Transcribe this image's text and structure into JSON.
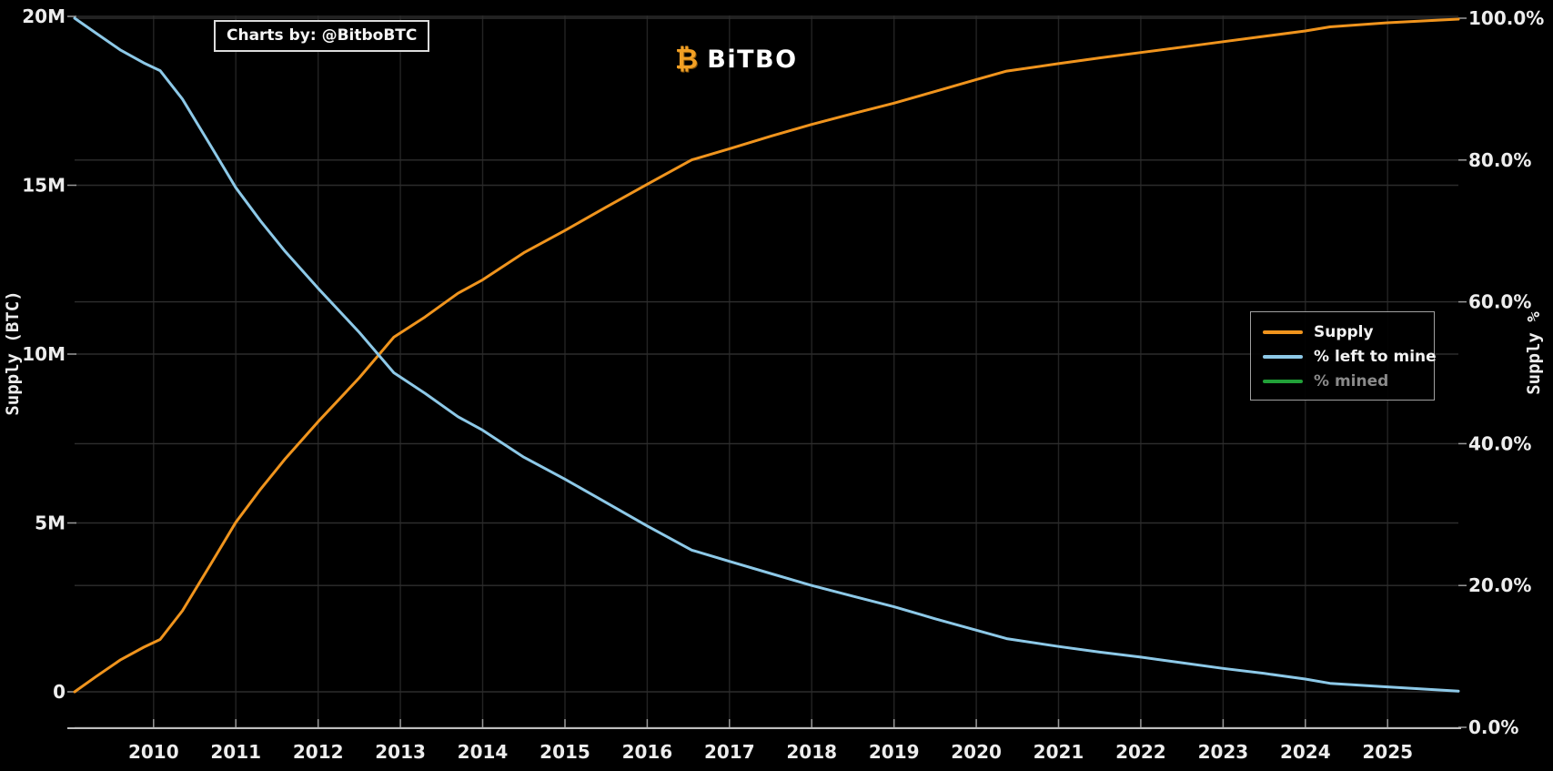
{
  "brand": {
    "logo_icon": "₿",
    "logo_text": "BiTBO",
    "accent_color": "#f7931a"
  },
  "watermark": {
    "text": "Charts by: @BitboBTC"
  },
  "chart_data": {
    "type": "line",
    "title": "",
    "background_color": "#000000",
    "grid": true,
    "axes": {
      "x": {
        "label": "",
        "ticks": [
          2010,
          2011,
          2012,
          2013,
          2014,
          2015,
          2016,
          2017,
          2018,
          2019,
          2020,
          2021,
          2022,
          2023,
          2024,
          2025
        ],
        "range": [
          2009.04,
          2025.86
        ]
      },
      "left": {
        "label": "Supply (BTC)",
        "tick_values": [
          0,
          5,
          10,
          15,
          20
        ],
        "tick_labels": [
          "0",
          "5M",
          "10M",
          "15M",
          "20M"
        ],
        "unit": "million BTC",
        "range": [
          0,
          20
        ]
      },
      "right": {
        "label": "Supply %",
        "tick_values": [
          0,
          20,
          40,
          60,
          80,
          100
        ],
        "tick_labels": [
          "0.0%",
          "20.0%",
          "40.0%",
          "60.0%",
          "80.0%",
          "100.0%"
        ],
        "range": [
          0,
          100
        ]
      }
    },
    "legend": {
      "position": "right-middle",
      "items": [
        {
          "label": "Supply",
          "color": "#f0941d",
          "active": true
        },
        {
          "label": "% left to mine",
          "color": "#8dc9e8",
          "active": true
        },
        {
          "label": "% mined",
          "color": "#21a038",
          "active": false
        }
      ]
    },
    "series": [
      {
        "id": "supply",
        "name": "Supply",
        "axis": "left",
        "color": "#f0941d",
        "visible": true,
        "points": [
          [
            2009.04,
            0
          ],
          [
            2009.3,
            0.45
          ],
          [
            2009.6,
            0.95
          ],
          [
            2009.88,
            1.32
          ],
          [
            2010.08,
            1.55
          ],
          [
            2010.35,
            2.4
          ],
          [
            2010.7,
            3.8
          ],
          [
            2011.0,
            5.02
          ],
          [
            2011.3,
            6.0
          ],
          [
            2011.6,
            6.9
          ],
          [
            2012.0,
            8.0
          ],
          [
            2012.5,
            9.3
          ],
          [
            2012.92,
            10.5
          ],
          [
            2013.3,
            11.1
          ],
          [
            2013.7,
            11.8
          ],
          [
            2014.0,
            12.2
          ],
          [
            2014.5,
            13.0
          ],
          [
            2015.0,
            13.66
          ],
          [
            2015.5,
            14.35
          ],
          [
            2016.0,
            15.03
          ],
          [
            2016.54,
            15.75
          ],
          [
            2017.0,
            16.08
          ],
          [
            2017.5,
            16.45
          ],
          [
            2018.0,
            16.8
          ],
          [
            2018.5,
            17.12
          ],
          [
            2019.0,
            17.43
          ],
          [
            2019.5,
            17.78
          ],
          [
            2020.0,
            18.13
          ],
          [
            2020.37,
            18.38
          ],
          [
            2021.0,
            18.6
          ],
          [
            2021.5,
            18.77
          ],
          [
            2022.0,
            18.93
          ],
          [
            2022.5,
            19.09
          ],
          [
            2023.0,
            19.25
          ],
          [
            2023.5,
            19.41
          ],
          [
            2024.0,
            19.57
          ],
          [
            2024.3,
            19.69
          ],
          [
            2025.0,
            19.81
          ],
          [
            2025.86,
            19.92
          ]
        ]
      },
      {
        "id": "pct_left_to_mine",
        "name": "% left to mine",
        "axis": "right",
        "color": "#8dc9e8",
        "visible": true,
        "points": [
          [
            2009.04,
            100
          ],
          [
            2009.3,
            97.9
          ],
          [
            2009.6,
            95.5
          ],
          [
            2009.88,
            93.7
          ],
          [
            2010.08,
            92.6
          ],
          [
            2010.35,
            88.6
          ],
          [
            2010.7,
            81.9
          ],
          [
            2011.0,
            76.1
          ],
          [
            2011.3,
            71.4
          ],
          [
            2011.6,
            67.1
          ],
          [
            2012.0,
            61.9
          ],
          [
            2012.5,
            55.7
          ],
          [
            2012.92,
            50.0
          ],
          [
            2013.3,
            47.1
          ],
          [
            2013.7,
            43.8
          ],
          [
            2014.0,
            41.9
          ],
          [
            2014.5,
            38.1
          ],
          [
            2015.0,
            35.0
          ],
          [
            2015.5,
            31.7
          ],
          [
            2016.0,
            28.4
          ],
          [
            2016.54,
            25.0
          ],
          [
            2017.0,
            23.4
          ],
          [
            2017.5,
            21.7
          ],
          [
            2018.0,
            20.0
          ],
          [
            2018.5,
            18.5
          ],
          [
            2019.0,
            17.0
          ],
          [
            2019.5,
            15.3
          ],
          [
            2020.0,
            13.7
          ],
          [
            2020.37,
            12.5
          ],
          [
            2021.0,
            11.4
          ],
          [
            2021.5,
            10.6
          ],
          [
            2022.0,
            9.9
          ],
          [
            2022.5,
            9.1
          ],
          [
            2023.0,
            8.3
          ],
          [
            2023.5,
            7.6
          ],
          [
            2024.0,
            6.8
          ],
          [
            2024.3,
            6.2
          ],
          [
            2025.0,
            5.7
          ],
          [
            2025.86,
            5.1
          ]
        ]
      },
      {
        "id": "pct_mined",
        "name": "% mined",
        "axis": "right",
        "color": "#21a038",
        "visible": false,
        "points": []
      }
    ]
  }
}
